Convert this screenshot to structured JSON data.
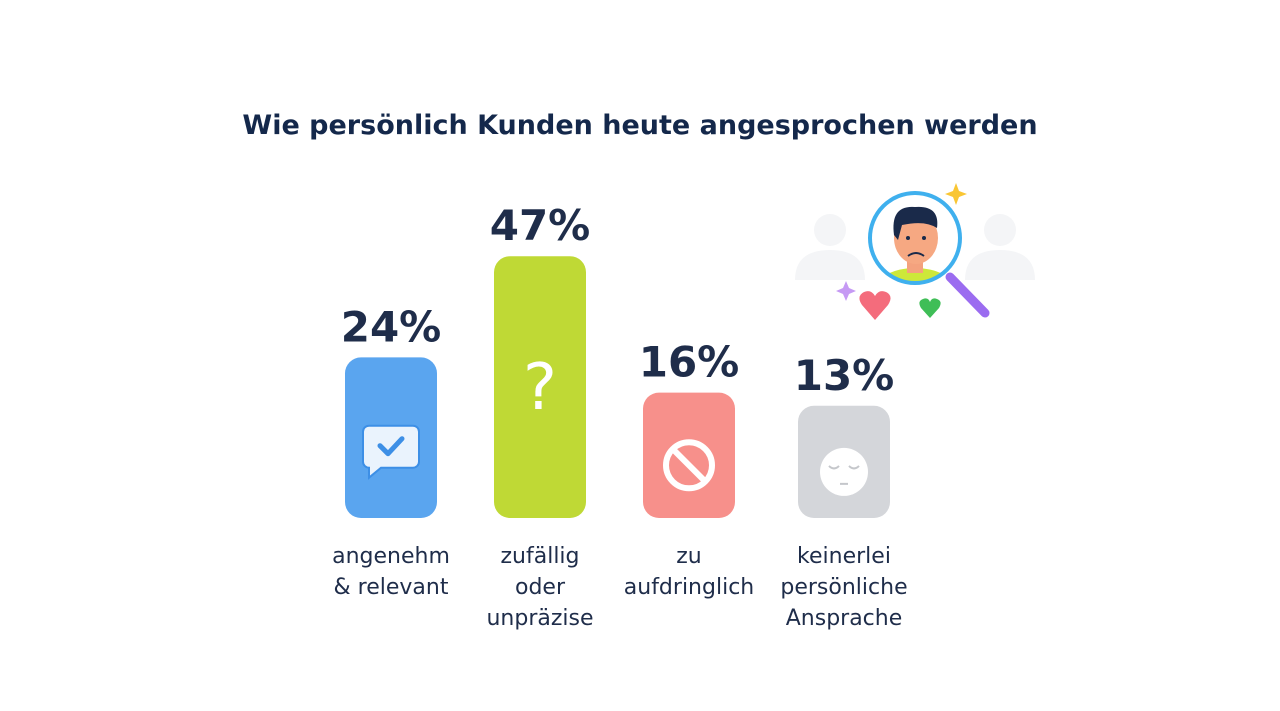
{
  "chart_data": {
    "type": "bar",
    "title": "Wie persönlich Kunden heute angesprochen werden",
    "categories": [
      [
        "angenehm",
        "& relevant"
      ],
      [
        "zufällig",
        "oder",
        "unpräzise"
      ],
      [
        "zu",
        "aufdringlich"
      ],
      [
        "keinerlei",
        "persönliche",
        "Ansprache"
      ]
    ],
    "values": [
      24,
      47,
      16,
      13
    ],
    "value_labels": [
      "24%",
      "47%",
      "16%",
      "13%"
    ],
    "unit": "%",
    "colors": [
      "#5aa5ef",
      "#bfd935",
      "#f7908b",
      "#d4d6da"
    ],
    "icons": [
      "chat-check-icon",
      "question-mark-icon",
      "prohibited-icon",
      "neutral-face-icon"
    ],
    "grid": false,
    "axes_visible": false
  },
  "illustration": {
    "icon": "magnifier-person-icon"
  }
}
